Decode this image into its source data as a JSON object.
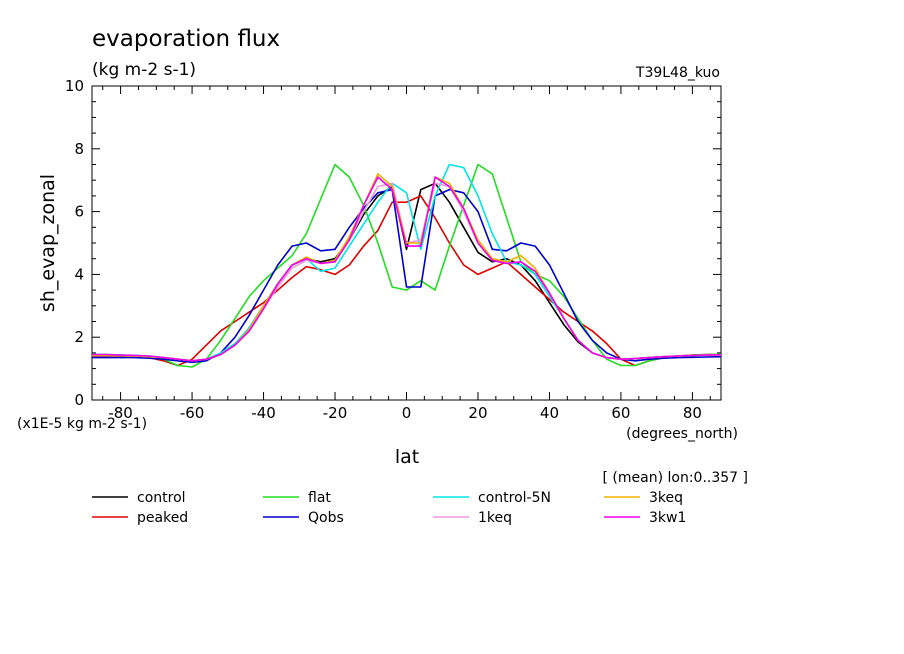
{
  "chart_data": {
    "type": "line",
    "title": "evaporation flux",
    "units": "(kg m-2 s-1)",
    "run_label": "T39L48_kuo",
    "ylabel": "sh_evap_zonal",
    "xlabel": "lat",
    "x_unit": "(degrees_north)",
    "y_scale_note": "(x1E-5 kg m-2 s-1)",
    "averaging_note": "[ (mean) lon:0..357 ]",
    "xlim": [
      -88,
      88
    ],
    "ylim": [
      0,
      10
    ],
    "x_ticks": [
      -80,
      -60,
      -40,
      -20,
      0,
      20,
      40,
      60,
      80
    ],
    "y_ticks": [
      0,
      2,
      4,
      6,
      8,
      10
    ],
    "x": [
      -88,
      -84,
      -80,
      -76,
      -72,
      -68,
      -64,
      -60,
      -56,
      -52,
      -48,
      -44,
      -40,
      -36,
      -32,
      -28,
      -24,
      -20,
      -16,
      -12,
      -8,
      -4,
      0,
      4,
      8,
      12,
      16,
      20,
      24,
      28,
      32,
      36,
      40,
      44,
      48,
      52,
      56,
      60,
      64,
      68,
      72,
      76,
      80,
      84,
      88
    ],
    "series": [
      {
        "name": "control",
        "color": "#000000",
        "values": [
          1.4,
          1.4,
          1.4,
          1.4,
          1.38,
          1.35,
          1.3,
          1.25,
          1.28,
          1.45,
          1.75,
          2.3,
          3.0,
          3.7,
          4.3,
          4.5,
          4.4,
          4.5,
          5.1,
          5.9,
          6.5,
          6.8,
          4.8,
          6.7,
          6.9,
          6.3,
          5.5,
          4.7,
          4.4,
          4.5,
          4.3,
          3.8,
          3.1,
          2.4,
          1.85,
          1.5,
          1.35,
          1.3,
          1.32,
          1.35,
          1.38,
          1.4,
          1.42,
          1.44,
          1.45
        ]
      },
      {
        "name": "peaked",
        "color": "#e00000",
        "values": [
          1.4,
          1.4,
          1.4,
          1.4,
          1.35,
          1.25,
          1.1,
          1.3,
          1.75,
          2.2,
          2.5,
          2.8,
          3.1,
          3.5,
          3.9,
          4.25,
          4.15,
          4.0,
          4.3,
          4.9,
          5.4,
          6.3,
          6.3,
          6.5,
          5.8,
          5.0,
          4.3,
          4.0,
          4.2,
          4.4,
          4.0,
          3.6,
          3.2,
          2.8,
          2.5,
          2.2,
          1.8,
          1.3,
          1.1,
          1.25,
          1.35,
          1.4,
          1.43,
          1.45,
          1.46
        ]
      },
      {
        "name": "flat",
        "color": "#22dd22",
        "values": [
          1.45,
          1.45,
          1.43,
          1.42,
          1.38,
          1.3,
          1.1,
          1.05,
          1.3,
          1.9,
          2.6,
          3.3,
          3.8,
          4.2,
          4.6,
          5.3,
          6.4,
          7.5,
          7.1,
          6.2,
          5.0,
          3.6,
          3.5,
          3.8,
          3.5,
          4.9,
          6.2,
          7.5,
          7.2,
          5.8,
          4.4,
          4.0,
          3.8,
          3.3,
          2.6,
          1.9,
          1.3,
          1.1,
          1.1,
          1.25,
          1.35,
          1.4,
          1.43,
          1.45,
          1.46
        ]
      },
      {
        "name": "Qobs",
        "color": "#0000cc",
        "values": [
          1.35,
          1.35,
          1.35,
          1.35,
          1.33,
          1.3,
          1.25,
          1.2,
          1.25,
          1.5,
          2.0,
          2.7,
          3.5,
          4.3,
          4.9,
          5.0,
          4.75,
          4.8,
          5.5,
          6.1,
          6.6,
          6.7,
          3.6,
          3.6,
          6.5,
          6.7,
          6.6,
          6.0,
          4.8,
          4.75,
          5.0,
          4.9,
          4.3,
          3.4,
          2.5,
          1.9,
          1.5,
          1.3,
          1.25,
          1.3,
          1.33,
          1.35,
          1.36,
          1.37,
          1.38
        ]
      },
      {
        "name": "control-5N",
        "color": "#00e5e5",
        "values": [
          1.45,
          1.45,
          1.43,
          1.42,
          1.4,
          1.35,
          1.3,
          1.25,
          1.3,
          1.5,
          1.8,
          2.3,
          3.0,
          3.7,
          4.3,
          4.5,
          4.1,
          4.2,
          4.9,
          5.6,
          6.3,
          6.9,
          6.6,
          4.8,
          6.5,
          7.5,
          7.4,
          6.5,
          5.3,
          4.4,
          4.3,
          4.0,
          3.3,
          2.6,
          1.9,
          1.5,
          1.35,
          1.3,
          1.32,
          1.35,
          1.38,
          1.4,
          1.42,
          1.43,
          1.44
        ]
      },
      {
        "name": "1keq",
        "color": "#ee99dd",
        "values": [
          1.42,
          1.42,
          1.41,
          1.4,
          1.38,
          1.35,
          1.3,
          1.25,
          1.3,
          1.45,
          1.75,
          2.2,
          2.9,
          3.6,
          4.2,
          4.45,
          4.35,
          4.4,
          5.1,
          6.0,
          6.8,
          6.9,
          5.0,
          5.1,
          6.9,
          6.8,
          6.0,
          5.0,
          4.45,
          4.35,
          4.4,
          4.1,
          3.4,
          2.6,
          1.9,
          1.5,
          1.35,
          1.3,
          1.32,
          1.35,
          1.38,
          1.4,
          1.42,
          1.43,
          1.44
        ]
      },
      {
        "name": "3keq",
        "color": "#f0b000",
        "values": [
          1.42,
          1.42,
          1.41,
          1.4,
          1.38,
          1.35,
          1.3,
          1.25,
          1.3,
          1.45,
          1.75,
          2.25,
          3.0,
          3.7,
          4.3,
          4.55,
          4.35,
          4.45,
          5.2,
          6.2,
          7.2,
          6.8,
          5.0,
          5.0,
          7.1,
          6.9,
          6.1,
          5.1,
          4.5,
          4.4,
          4.6,
          4.2,
          3.4,
          2.6,
          1.9,
          1.5,
          1.35,
          1.3,
          1.32,
          1.35,
          1.38,
          1.4,
          1.42,
          1.43,
          1.44
        ]
      },
      {
        "name": "3kw1",
        "color": "#ee00ee",
        "values": [
          1.45,
          1.45,
          1.43,
          1.42,
          1.4,
          1.35,
          1.3,
          1.25,
          1.3,
          1.45,
          1.75,
          2.2,
          2.9,
          3.7,
          4.3,
          4.5,
          4.35,
          4.4,
          5.1,
          6.2,
          7.1,
          6.7,
          4.9,
          4.9,
          7.1,
          6.8,
          6.1,
          5.0,
          4.45,
          4.35,
          4.4,
          4.1,
          3.4,
          2.6,
          1.9,
          1.5,
          1.35,
          1.3,
          1.32,
          1.35,
          1.38,
          1.4,
          1.42,
          1.43,
          1.44
        ]
      }
    ]
  }
}
